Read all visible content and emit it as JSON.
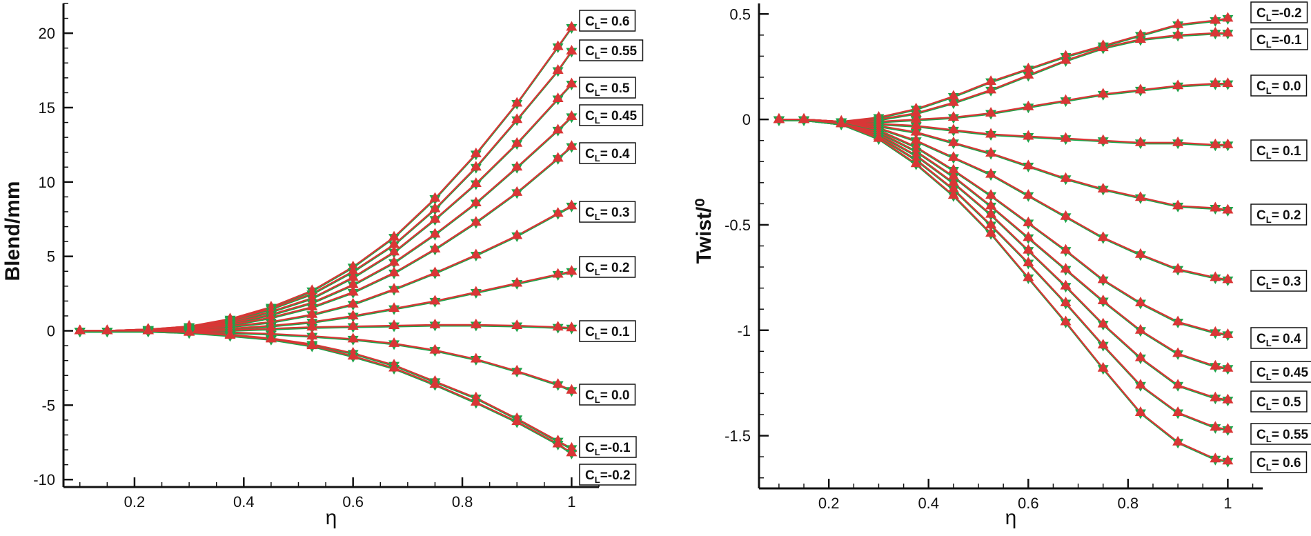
{
  "colors": {
    "red": "#d93636",
    "green": "#1fa34a",
    "axis": "#111111"
  },
  "chart_data": [
    {
      "type": "line",
      "title": "",
      "xlabel": "η",
      "ylabel": "Blend/mm",
      "xlim": [
        0.07,
        1.05
      ],
      "ylim": [
        -10.5,
        22
      ],
      "xticks": [
        0.2,
        0.4,
        0.6,
        0.8,
        1
      ],
      "xtick_labels": [
        "0.2",
        "0.4",
        "0.6",
        "0.8",
        "1"
      ],
      "yticks": [
        -10,
        -5,
        0,
        5,
        10,
        15,
        20
      ],
      "ytick_labels": [
        "-10",
        "-5",
        "0",
        "5",
        "10",
        "15",
        "20"
      ],
      "x": [
        0.1,
        0.15,
        0.225,
        0.3,
        0.375,
        0.45,
        0.525,
        0.6,
        0.675,
        0.75,
        0.825,
        0.9,
        0.975,
        1.0
      ],
      "series": [
        {
          "name": "C_L = 0.6",
          "label_sub": "L",
          "label_prefix": "C",
          "label_suffix": "= 0.6",
          "values": [
            0,
            0,
            0.1,
            0.3,
            0.8,
            1.6,
            2.7,
            4.3,
            6.3,
            8.9,
            11.9,
            15.3,
            19.1,
            20.4
          ]
        },
        {
          "name": "C_L = 0.55",
          "label_sub": "L",
          "label_prefix": "C",
          "label_suffix": "= 0.55",
          "values": [
            0,
            0,
            0.1,
            0.3,
            0.7,
            1.5,
            2.5,
            4.0,
            5.8,
            8.2,
            11.0,
            14.2,
            17.5,
            18.8
          ]
        },
        {
          "name": "C_L = 0.5",
          "label_sub": "L",
          "label_prefix": "C",
          "label_suffix": "= 0.5",
          "values": [
            0,
            0,
            0.1,
            0.2,
            0.6,
            1.3,
            2.2,
            3.6,
            5.3,
            7.5,
            9.9,
            12.6,
            15.6,
            16.6
          ]
        },
        {
          "name": "C_L = 0.45",
          "label_sub": "L",
          "label_prefix": "C",
          "label_suffix": "= 0.45",
          "values": [
            0,
            0,
            0.1,
            0.2,
            0.5,
            1.1,
            1.9,
            3.1,
            4.6,
            6.5,
            8.6,
            11.0,
            13.5,
            14.4
          ]
        },
        {
          "name": "C_L = 0.4",
          "label_sub": "L",
          "label_prefix": "C",
          "label_suffix": "= 0.4",
          "values": [
            0,
            0,
            0.1,
            0.2,
            0.4,
            0.9,
            1.6,
            2.6,
            3.9,
            5.5,
            7.3,
            9.3,
            11.6,
            12.4
          ]
        },
        {
          "name": "C_L = 0.3",
          "label_sub": "L",
          "label_prefix": "C",
          "label_suffix": "= 0.3",
          "values": [
            0,
            0,
            0.05,
            0.1,
            0.3,
            0.6,
            1.1,
            1.8,
            2.8,
            3.9,
            5.1,
            6.4,
            7.9,
            8.4
          ]
        },
        {
          "name": "C_L = 0.2",
          "label_sub": "L",
          "label_prefix": "C",
          "label_suffix": "= 0.2",
          "values": [
            0,
            0,
            0,
            0.05,
            0.15,
            0.35,
            0.6,
            1.0,
            1.5,
            2.0,
            2.6,
            3.2,
            3.8,
            4.0
          ]
        },
        {
          "name": "C_L = 0.1",
          "label_sub": "L",
          "label_prefix": "C",
          "label_suffix": "= 0.1",
          "values": [
            0,
            0,
            0,
            0,
            0.05,
            0.15,
            0.25,
            0.3,
            0.35,
            0.4,
            0.4,
            0.35,
            0.25,
            0.2
          ]
        },
        {
          "name": "C_L = 0.0",
          "label_sub": "L",
          "label_prefix": "C",
          "label_suffix": "= 0.0",
          "values": [
            0,
            0,
            0,
            -0.05,
            -0.1,
            -0.2,
            -0.35,
            -0.55,
            -0.85,
            -1.3,
            -1.9,
            -2.7,
            -3.6,
            -4.0
          ]
        },
        {
          "name": "C_L =-0.1",
          "label_sub": "L",
          "label_prefix": "C",
          "label_suffix": "=-0.1",
          "values": [
            0,
            0,
            0,
            -0.1,
            -0.25,
            -0.5,
            -0.9,
            -1.5,
            -2.3,
            -3.4,
            -4.5,
            -5.9,
            -7.4,
            -7.9
          ]
        },
        {
          "name": "C_L =-0.2",
          "label_sub": "L",
          "label_prefix": "C",
          "label_suffix": "=-0.2",
          "values": [
            0,
            0,
            0,
            -0.1,
            -0.3,
            -0.55,
            -1.0,
            -1.7,
            -2.5,
            -3.6,
            -4.8,
            -6.1,
            -7.6,
            -8.2
          ]
        }
      ],
      "label_order_top_to_bottom": [
        "C_L = 0.6",
        "C_L = 0.55",
        "C_L = 0.5",
        "C_L = 0.45",
        "C_L = 0.4",
        "C_L = 0.3",
        "C_L = 0.2",
        "C_L = 0.1",
        "C_L = 0.0",
        "C_L =-0.1",
        "C_L =-0.2"
      ],
      "legend": "inline labels at right end of each curve",
      "markers": "green down-triangle and red up-triangle at each data point"
    },
    {
      "type": "line",
      "title": "",
      "xlabel": "η",
      "ylabel": "Twist/⁰",
      "xlim": [
        0.06,
        1.07
      ],
      "ylim": [
        -1.75,
        0.55
      ],
      "xticks": [
        0.2,
        0.4,
        0.6,
        0.8,
        1
      ],
      "xtick_labels": [
        "0.2",
        "0.4",
        "0.6",
        "0.8",
        "1"
      ],
      "yticks": [
        -1.5,
        -1,
        -0.5,
        0,
        0.5
      ],
      "ytick_labels": [
        "-1.5",
        "-1",
        "-0.5",
        "0",
        "0.5"
      ],
      "x": [
        0.1,
        0.15,
        0.225,
        0.3,
        0.375,
        0.45,
        0.525,
        0.6,
        0.675,
        0.75,
        0.825,
        0.9,
        0.975,
        1.0
      ],
      "series": [
        {
          "name": "C_L =-0.2",
          "label_prefix": "C",
          "label_sub": "L",
          "label_suffix": "=-0.2",
          "values": [
            0,
            0,
            -0.01,
            0.01,
            0.05,
            0.11,
            0.18,
            0.24,
            0.3,
            0.35,
            0.4,
            0.45,
            0.47,
            0.48
          ]
        },
        {
          "name": "C_L =-0.1",
          "label_prefix": "C",
          "label_suffix": "=-0.1",
          "label_sub": "L",
          "values": [
            0,
            0,
            -0.01,
            0,
            0.03,
            0.08,
            0.14,
            0.21,
            0.28,
            0.34,
            0.38,
            0.4,
            0.41,
            0.41
          ]
        },
        {
          "name": "C_L = 0.0",
          "label_prefix": "C",
          "label_suffix": "= 0.0",
          "label_sub": "L",
          "values": [
            0,
            0,
            -0.01,
            -0.01,
            0.0,
            0.01,
            0.03,
            0.06,
            0.09,
            0.12,
            0.14,
            0.16,
            0.17,
            0.17
          ]
        },
        {
          "name": "C_L = 0.1",
          "label_prefix": "C",
          "label_suffix": "= 0.1",
          "label_sub": "L",
          "values": [
            0,
            0,
            -0.01,
            -0.02,
            -0.03,
            -0.05,
            -0.07,
            -0.08,
            -0.09,
            -0.1,
            -0.11,
            -0.11,
            -0.12,
            -0.12
          ]
        },
        {
          "name": "C_L = 0.2",
          "label_prefix": "C",
          "label_suffix": "= 0.2",
          "label_sub": "L",
          "values": [
            0,
            0,
            -0.01,
            -0.03,
            -0.06,
            -0.11,
            -0.16,
            -0.22,
            -0.28,
            -0.33,
            -0.37,
            -0.41,
            -0.42,
            -0.43
          ]
        },
        {
          "name": "C_L = 0.3",
          "label_prefix": "C",
          "label_suffix": "= 0.3",
          "label_sub": "L",
          "values": [
            0,
            0,
            -0.01,
            -0.04,
            -0.1,
            -0.18,
            -0.26,
            -0.36,
            -0.46,
            -0.56,
            -0.64,
            -0.71,
            -0.75,
            -0.76
          ]
        },
        {
          "name": "C_L = 0.4",
          "label_prefix": "C",
          "label_suffix": "= 0.4",
          "label_sub": "L",
          "values": [
            0,
            0,
            -0.01,
            -0.05,
            -0.13,
            -0.24,
            -0.36,
            -0.49,
            -0.62,
            -0.76,
            -0.87,
            -0.96,
            -1.01,
            -1.02
          ]
        },
        {
          "name": "C_L = 0.45",
          "label_prefix": "C",
          "label_suffix": "= 0.45",
          "label_sub": "L",
          "values": [
            0,
            0,
            -0.02,
            -0.06,
            -0.15,
            -0.27,
            -0.41,
            -0.56,
            -0.71,
            -0.86,
            -1.0,
            -1.11,
            -1.17,
            -1.18
          ]
        },
        {
          "name": "C_L = 0.5",
          "label_prefix": "C",
          "label_suffix": "= 0.5",
          "label_sub": "L",
          "values": [
            0,
            0,
            -0.02,
            -0.07,
            -0.17,
            -0.3,
            -0.45,
            -0.62,
            -0.79,
            -0.97,
            -1.13,
            -1.26,
            -1.32,
            -1.33
          ]
        },
        {
          "name": "C_L = 0.55",
          "label_prefix": "C",
          "label_suffix": "= 0.55",
          "label_sub": "L",
          "values": [
            0,
            0,
            -0.02,
            -0.08,
            -0.19,
            -0.33,
            -0.5,
            -0.68,
            -0.87,
            -1.07,
            -1.26,
            -1.39,
            -1.46,
            -1.47
          ]
        },
        {
          "name": "C_L = 0.6",
          "label_prefix": "C",
          "label_suffix": "= 0.6",
          "label_sub": "L",
          "values": [
            0,
            0,
            -0.02,
            -0.09,
            -0.21,
            -0.36,
            -0.54,
            -0.75,
            -0.96,
            -1.18,
            -1.39,
            -1.53,
            -1.61,
            -1.62
          ]
        }
      ],
      "label_order_top_to_bottom": [
        "C_L =-0.2",
        "C_L =-0.1",
        "C_L = 0.0",
        "C_L = 0.1",
        "C_L = 0.2",
        "C_L = 0.3",
        "C_L = 0.4",
        "C_L = 0.45",
        "C_L = 0.5",
        "C_L = 0.55",
        "C_L = 0.6"
      ],
      "legend": "inline labels at right end of each curve",
      "markers": "green down-triangle and red up-triangle at each data point"
    }
  ]
}
